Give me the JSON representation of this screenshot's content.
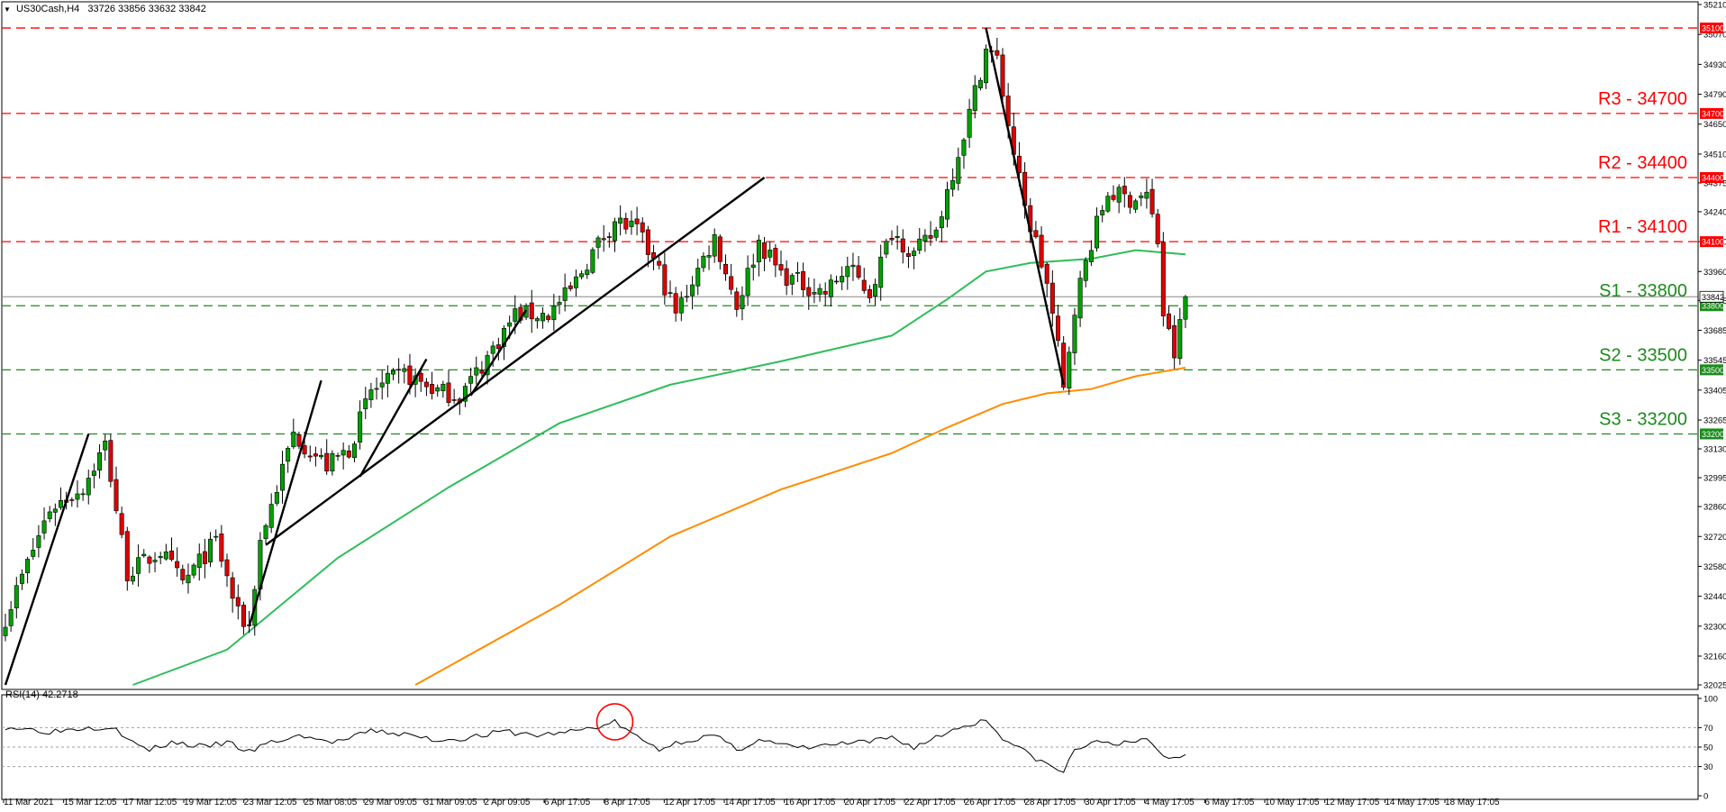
{
  "chart_title": "US30Cash,H4",
  "ohlc_text": "33726 33856 33632 33842",
  "indicator_title": "RSI(14) 42.2718",
  "colors": {
    "bull": "#00a000",
    "bear": "#e00000",
    "wick": "#000000",
    "ma_fast": "#2ebd5a",
    "ma_slow": "#ff8c00",
    "resistance": "#ff0000",
    "support": "#1a8c1a",
    "trendline": "#000000",
    "rsi": "#000000",
    "circle": "#ff0000"
  },
  "chart_data": {
    "type": "candlestick",
    "timeframe": "H4",
    "ylim": [
      32025,
      35210
    ],
    "y_ticks": [
      32025,
      32160,
      32300,
      32440,
      32580,
      32720,
      32860,
      32995,
      33130,
      33265,
      33405,
      33545,
      33685,
      33825,
      33960,
      34100,
      34240,
      34375,
      34510,
      34650,
      34790,
      34930,
      35070,
      35210
    ],
    "x_tick_labels": [
      "11 Mar 2021",
      "15 Mar 12:05",
      "17 Mar 12:05",
      "19 Mar 12:05",
      "23 Mar 12:05",
      "25 Mar 08:05",
      "29 Mar 09:05",
      "31 Mar 09:05",
      "2 Apr 09:05",
      "6 Apr 17:05",
      "8 Apr 17:05",
      "12 Apr 17:05",
      "14 Apr 17:05",
      "16 Apr 17:05",
      "20 Apr 17:05",
      "22 Apr 17:05",
      "26 Apr 17:05",
      "28 Apr 17:05",
      "30 Apr 17:05",
      "4 May 17:05",
      "6 May 17:05",
      "10 May 17:05",
      "12 May 17:05",
      "14 May 17:05",
      "18 May 17:05"
    ],
    "close_waypoints": [
      [
        0,
        32340
      ],
      [
        8,
        32850
      ],
      [
        14,
        32950
      ],
      [
        18,
        33150
      ],
      [
        22,
        32550
      ],
      [
        28,
        32650
      ],
      [
        32,
        32500
      ],
      [
        38,
        32700
      ],
      [
        42,
        32350
      ],
      [
        44,
        32300
      ],
      [
        46,
        32700
      ],
      [
        52,
        33200
      ],
      [
        58,
        33050
      ],
      [
        62,
        33130
      ],
      [
        66,
        33400
      ],
      [
        72,
        33480
      ],
      [
        78,
        33400
      ],
      [
        82,
        33380
      ],
      [
        86,
        33520
      ],
      [
        92,
        33760
      ],
      [
        98,
        33760
      ],
      [
        102,
        33870
      ],
      [
        106,
        34050
      ],
      [
        110,
        34200
      ],
      [
        114,
        34150
      ],
      [
        118,
        33960
      ],
      [
        121,
        33760
      ],
      [
        124,
        33920
      ],
      [
        128,
        34120
      ],
      [
        132,
        33800
      ],
      [
        136,
        34100
      ],
      [
        140,
        33950
      ],
      [
        144,
        33900
      ],
      [
        148,
        33860
      ],
      [
        152,
        33980
      ],
      [
        156,
        33860
      ],
      [
        160,
        34150
      ],
      [
        164,
        34040
      ],
      [
        168,
        34150
      ],
      [
        170,
        34340
      ],
      [
        174,
        34700
      ],
      [
        177,
        35000
      ],
      [
        179,
        34950
      ],
      [
        181,
        34650
      ],
      [
        184,
        34250
      ],
      [
        186,
        34100
      ],
      [
        188,
        33900
      ],
      [
        190,
        33600
      ],
      [
        191,
        33400
      ],
      [
        193,
        33800
      ],
      [
        196,
        34100
      ],
      [
        199,
        34330
      ],
      [
        203,
        34300
      ],
      [
        206,
        34320
      ],
      [
        208,
        34100
      ],
      [
        209,
        33760
      ],
      [
        211,
        33570
      ],
      [
        213,
        33842
      ]
    ],
    "moving_averages": [
      {
        "name": "ma_fast",
        "points": [
          [
            23,
            32025
          ],
          [
            40,
            32190
          ],
          [
            60,
            32620
          ],
          [
            80,
            32950
          ],
          [
            100,
            33250
          ],
          [
            120,
            33430
          ],
          [
            140,
            33540
          ],
          [
            160,
            33660
          ],
          [
            170,
            33830
          ],
          [
            177,
            33960
          ],
          [
            185,
            34000
          ],
          [
            196,
            34020
          ],
          [
            204,
            34060
          ],
          [
            213,
            34040
          ]
        ]
      },
      {
        "name": "ma_slow",
        "points": [
          [
            74,
            32025
          ],
          [
            100,
            32400
          ],
          [
            120,
            32720
          ],
          [
            140,
            32940
          ],
          [
            160,
            33110
          ],
          [
            170,
            33230
          ],
          [
            180,
            33340
          ],
          [
            188,
            33390
          ],
          [
            196,
            33410
          ],
          [
            204,
            33470
          ],
          [
            213,
            33510
          ]
        ]
      }
    ],
    "levels": [
      {
        "price": 35100,
        "label": "",
        "kind": "resistance",
        "tag": "35100"
      },
      {
        "price": 34700,
        "label": "R3 - 34700",
        "kind": "resistance",
        "tag": "34700"
      },
      {
        "price": 34400,
        "label": "R2 - 34400",
        "kind": "resistance",
        "tag": "34400"
      },
      {
        "price": 34100,
        "label": "R1 - 34100",
        "kind": "resistance",
        "tag": "34100"
      },
      {
        "price": 33800,
        "label": "S1 - 33800",
        "kind": "support",
        "tag": "33800"
      },
      {
        "price": 33500,
        "label": "S2 - 33500",
        "kind": "support",
        "tag": "33500"
      },
      {
        "price": 33200,
        "label": "S3 - 33200",
        "kind": "support",
        "tag": "33200"
      }
    ],
    "current_price": {
      "price": 33842,
      "tag": "33842"
    },
    "trendlines": [
      [
        [
          0,
          32025
        ],
        [
          15,
          33200
        ]
      ],
      [
        [
          44,
          32300
        ],
        [
          57,
          33450
        ]
      ],
      [
        [
          47,
          32680
        ],
        [
          137,
          34400
        ]
      ],
      [
        [
          64,
          33000
        ],
        [
          76,
          33550
        ]
      ],
      [
        [
          84,
          33380
        ],
        [
          94,
          33780
        ]
      ],
      [
        [
          177,
          35100
        ],
        [
          191,
          33430
        ]
      ]
    ],
    "rsi": {
      "period": 14,
      "value": 42.2718,
      "ylim": [
        0,
        100
      ],
      "y_ticks": [
        0,
        30,
        50,
        70,
        100
      ],
      "levels": [
        30,
        50,
        70
      ],
      "highlight_index": 110,
      "waypoints": [
        [
          0,
          71
        ],
        [
          8,
          66
        ],
        [
          14,
          70
        ],
        [
          20,
          71
        ],
        [
          22,
          57
        ],
        [
          26,
          47
        ],
        [
          30,
          55
        ],
        [
          36,
          50
        ],
        [
          40,
          55
        ],
        [
          44,
          45
        ],
        [
          48,
          55
        ],
        [
          54,
          62
        ],
        [
          58,
          55
        ],
        [
          62,
          58
        ],
        [
          66,
          67
        ],
        [
          72,
          63
        ],
        [
          78,
          57
        ],
        [
          84,
          60
        ],
        [
          90,
          66
        ],
        [
          96,
          62
        ],
        [
          102,
          66
        ],
        [
          108,
          72
        ],
        [
          110,
          76
        ],
        [
          114,
          60
        ],
        [
          118,
          48
        ],
        [
          122,
          56
        ],
        [
          128,
          62
        ],
        [
          132,
          47
        ],
        [
          136,
          58
        ],
        [
          140,
          52
        ],
        [
          144,
          49
        ],
        [
          150,
          53
        ],
        [
          156,
          55
        ],
        [
          160,
          60
        ],
        [
          164,
          50
        ],
        [
          168,
          60
        ],
        [
          172,
          70
        ],
        [
          177,
          78
        ],
        [
          180,
          60
        ],
        [
          184,
          45
        ],
        [
          188,
          32
        ],
        [
          191,
          24
        ],
        [
          193,
          48
        ],
        [
          198,
          56
        ],
        [
          203,
          53
        ],
        [
          206,
          58
        ],
        [
          208,
          48
        ],
        [
          210,
          37
        ],
        [
          213,
          42
        ]
      ]
    }
  }
}
